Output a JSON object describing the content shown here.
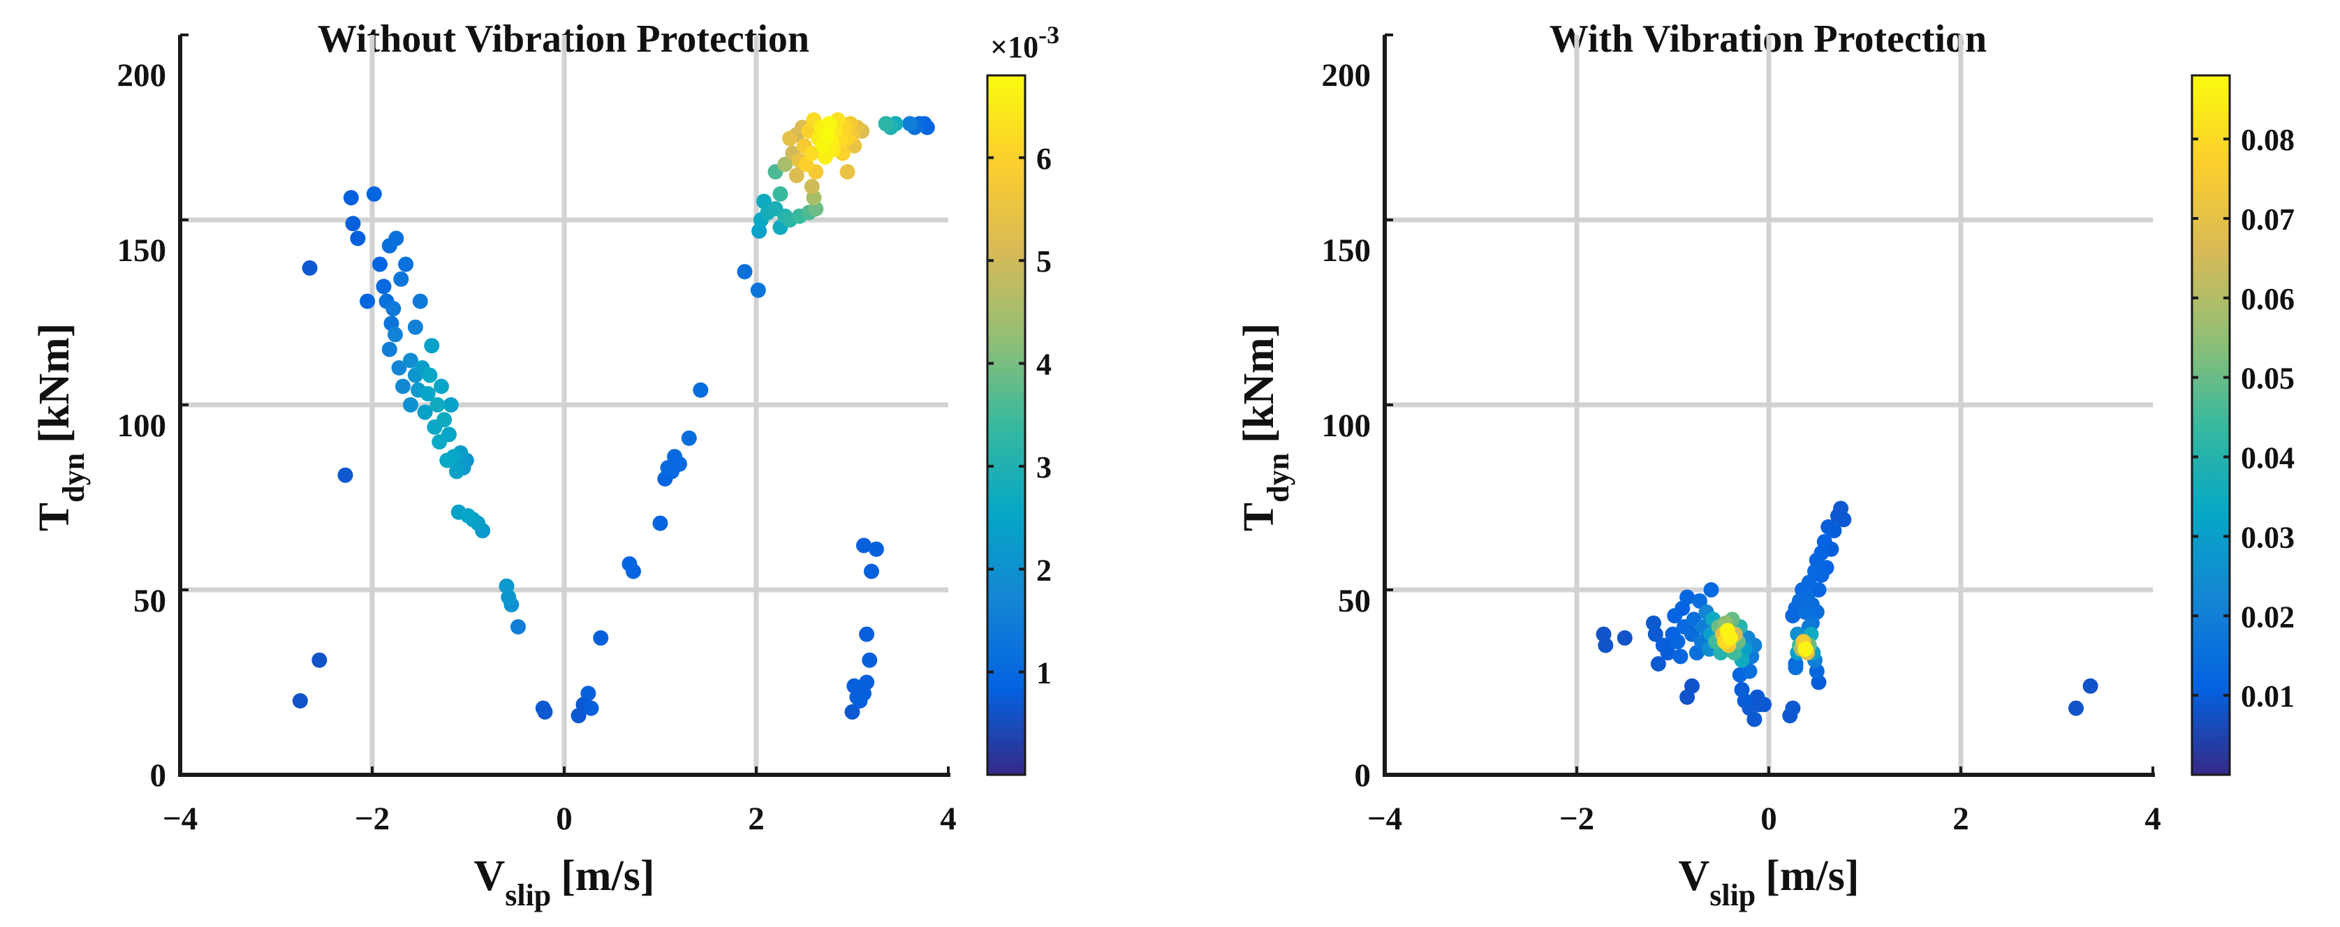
{
  "colors": {
    "parula": [
      "#352a87",
      "#0363e1",
      "#1485d4",
      "#06a7c6",
      "#38b99e",
      "#92bf73",
      "#d9ba56",
      "#fcce2e",
      "#f9fb0e"
    ],
    "grid": "#d2d2d2",
    "axis": "#1a1a1a"
  },
  "chart_data": [
    {
      "type": "scatter",
      "title": "Without Vibration Protection",
      "xlabel_main": "V",
      "xlabel_sub": "slip",
      "xlabel_unit": "[m/s]",
      "ylabel_main": "T",
      "ylabel_sub": "dyn",
      "ylabel_unit": "[kNm]",
      "xlim": [
        -4,
        4
      ],
      "ylim": [
        0,
        200
      ],
      "xticks": [
        -4,
        -2,
        0,
        2,
        4
      ],
      "yticks": [
        0,
        50,
        100,
        150,
        200
      ],
      "xtick_labels": [
        "−4",
        "−2",
        "0",
        "2",
        "4"
      ],
      "ytick_labels": [
        "0",
        "50",
        "100",
        "150",
        "200"
      ],
      "grid": true,
      "colorbar": {
        "clim": [
          0,
          0.0068
        ],
        "ticks": [
          0.001,
          0.002,
          0.003,
          0.004,
          0.005,
          0.006
        ],
        "tick_labels": [
          "1",
          "2",
          "3",
          "4",
          "5",
          "6"
        ],
        "exponent_base": "×10",
        "exponent_power": "-3"
      },
      "points": [
        [
          -2.75,
          20,
          0.0006
        ],
        [
          -2.55,
          31,
          0.0006
        ],
        [
          -2.65,
          137,
          0.0007
        ],
        [
          -2.28,
          81,
          0.0007
        ],
        [
          -2.2,
          149,
          0.0008
        ],
        [
          -2.22,
          156,
          0.0008
        ],
        [
          -2.15,
          145,
          0.0008
        ],
        [
          -2.05,
          128,
          0.0009
        ],
        [
          -1.98,
          157,
          0.0009
        ],
        [
          -1.92,
          138,
          0.0009
        ],
        [
          -1.88,
          132,
          0.001
        ],
        [
          -1.82,
          143,
          0.0011
        ],
        [
          -1.75,
          145,
          0.0012
        ],
        [
          -1.85,
          128,
          0.0012
        ],
        [
          -1.8,
          122,
          0.0013
        ],
        [
          -1.78,
          126,
          0.0014
        ],
        [
          -1.82,
          115,
          0.0015
        ],
        [
          -1.76,
          119,
          0.0016
        ],
        [
          -1.7,
          134,
          0.0013
        ],
        [
          -1.65,
          138,
          0.0012
        ],
        [
          -1.72,
          110,
          0.0017
        ],
        [
          -1.68,
          105,
          0.0018
        ],
        [
          -1.6,
          112,
          0.0019
        ],
        [
          -1.55,
          121,
          0.0016
        ],
        [
          -1.5,
          128,
          0.0014
        ],
        [
          -1.6,
          100,
          0.002
        ],
        [
          -1.55,
          108,
          0.0021
        ],
        [
          -1.52,
          104,
          0.0022
        ],
        [
          -1.48,
          110,
          0.0023
        ],
        [
          -1.45,
          98,
          0.0024
        ],
        [
          -1.42,
          103,
          0.0025
        ],
        [
          -1.4,
          108,
          0.0026
        ],
        [
          -1.38,
          116,
          0.0024
        ],
        [
          -1.35,
          94,
          0.0026
        ],
        [
          -1.32,
          100,
          0.0027
        ],
        [
          -1.3,
          90,
          0.0026
        ],
        [
          -1.28,
          105,
          0.0025
        ],
        [
          -1.25,
          96,
          0.0027
        ],
        [
          -1.22,
          85,
          0.0026
        ],
        [
          -1.2,
          92,
          0.0025
        ],
        [
          -1.18,
          100,
          0.0024
        ],
        [
          -1.15,
          86,
          0.0025
        ],
        [
          -1.12,
          82,
          0.0024
        ],
        [
          -1.08,
          87,
          0.0023
        ],
        [
          -1.05,
          83,
          0.0022
        ],
        [
          -1.02,
          85,
          0.0021
        ],
        [
          -1.1,
          71,
          0.0024
        ],
        [
          -1.0,
          70,
          0.0025
        ],
        [
          -0.95,
          69,
          0.0024
        ],
        [
          -0.9,
          68,
          0.0023
        ],
        [
          -0.85,
          66,
          0.0022
        ],
        [
          -0.6,
          51,
          0.0022
        ],
        [
          -0.58,
          48,
          0.0021
        ],
        [
          -0.55,
          46,
          0.002
        ],
        [
          -0.48,
          40,
          0.0015
        ],
        [
          -0.22,
          18,
          0.0007
        ],
        [
          -0.2,
          17,
          0.0007
        ],
        [
          0.15,
          16,
          0.0007
        ],
        [
          0.2,
          19,
          0.0007
        ],
        [
          0.25,
          22,
          0.0008
        ],
        [
          0.28,
          18,
          0.0008
        ],
        [
          0.38,
          37,
          0.0008
        ],
        [
          0.68,
          57,
          0.0009
        ],
        [
          0.72,
          55,
          0.0009
        ],
        [
          1.0,
          68,
          0.0009
        ],
        [
          1.05,
          80,
          0.0009
        ],
        [
          1.08,
          83,
          0.001
        ],
        [
          1.12,
          82,
          0.001
        ],
        [
          1.15,
          86,
          0.001
        ],
        [
          1.2,
          84,
          0.001
        ],
        [
          1.3,
          91,
          0.0011
        ],
        [
          1.42,
          104,
          0.0011
        ],
        [
          1.88,
          136,
          0.0012
        ],
        [
          2.02,
          131,
          0.0013
        ],
        [
          2.03,
          147,
          0.0024
        ],
        [
          2.05,
          150,
          0.0026
        ],
        [
          2.08,
          155,
          0.0027
        ],
        [
          2.12,
          152,
          0.0028
        ],
        [
          2.2,
          153,
          0.0029
        ],
        [
          2.25,
          148,
          0.0027
        ],
        [
          2.3,
          151,
          0.0031
        ],
        [
          2.35,
          150,
          0.0032
        ],
        [
          2.45,
          151,
          0.0034
        ],
        [
          2.55,
          152,
          0.0036
        ],
        [
          2.62,
          153,
          0.0039
        ],
        [
          2.6,
          156,
          0.0045
        ],
        [
          2.58,
          159,
          0.005
        ],
        [
          2.2,
          163,
          0.0036
        ],
        [
          2.25,
          157,
          0.0034
        ],
        [
          2.3,
          165,
          0.0045
        ],
        [
          2.38,
          168,
          0.005
        ],
        [
          2.42,
          162,
          0.0052
        ],
        [
          2.45,
          166,
          0.0055
        ],
        [
          2.35,
          172,
          0.0054
        ],
        [
          2.5,
          170,
          0.0058
        ],
        [
          2.52,
          165,
          0.006
        ],
        [
          2.55,
          174,
          0.006
        ],
        [
          2.58,
          168,
          0.0062
        ],
        [
          2.6,
          177,
          0.0062
        ],
        [
          2.62,
          163,
          0.0058
        ],
        [
          2.65,
          172,
          0.0065
        ],
        [
          2.68,
          175,
          0.0066
        ],
        [
          2.7,
          170,
          0.0067
        ],
        [
          2.72,
          167,
          0.0066
        ],
        [
          2.74,
          173,
          0.0068
        ],
        [
          2.76,
          176,
          0.0067
        ],
        [
          2.78,
          171,
          0.0066
        ],
        [
          2.8,
          169,
          0.0065
        ],
        [
          2.82,
          174,
          0.0064
        ],
        [
          2.85,
          177,
          0.0063
        ],
        [
          2.88,
          172,
          0.0062
        ],
        [
          2.9,
          168,
          0.006
        ],
        [
          2.92,
          175,
          0.0061
        ],
        [
          2.95,
          172,
          0.006
        ],
        [
          2.98,
          176,
          0.0058
        ],
        [
          3.0,
          173,
          0.0057
        ],
        [
          3.02,
          170,
          0.0055
        ],
        [
          3.05,
          175,
          0.0054
        ],
        [
          3.1,
          174,
          0.0052
        ],
        [
          2.95,
          163,
          0.0055
        ],
        [
          2.48,
          175,
          0.0052
        ],
        [
          2.42,
          173,
          0.005
        ],
        [
          3.35,
          176,
          0.0032
        ],
        [
          3.4,
          175,
          0.003
        ],
        [
          3.45,
          176,
          0.0028
        ],
        [
          3.6,
          176,
          0.0015
        ],
        [
          3.65,
          175,
          0.0012
        ],
        [
          3.7,
          176,
          0.001
        ],
        [
          3.75,
          176,
          0.0009
        ],
        [
          3.78,
          175,
          0.0009
        ],
        [
          3.12,
          62,
          0.0008
        ],
        [
          3.25,
          61,
          0.0008
        ],
        [
          3.2,
          55,
          0.0008
        ],
        [
          3.15,
          38,
          0.0008
        ],
        [
          3.18,
          31,
          0.0008
        ],
        [
          3.15,
          25,
          0.0008
        ],
        [
          3.1,
          23,
          0.0008
        ],
        [
          3.05,
          21,
          0.0008
        ],
        [
          3.02,
          24,
          0.0008
        ],
        [
          3.0,
          17,
          0.0007
        ],
        [
          3.08,
          20,
          0.0008
        ],
        [
          3.12,
          22,
          0.0008
        ]
      ]
    },
    {
      "type": "scatter",
      "title": "With Vibration Protection",
      "xlabel_main": "V",
      "xlabel_sub": "slip",
      "xlabel_unit": "[m/s]",
      "ylabel_main": "T",
      "ylabel_sub": "dyn",
      "ylabel_unit": "[kNm]",
      "xlim": [
        -4,
        4
      ],
      "ylim": [
        0,
        200
      ],
      "xticks": [
        -4,
        -2,
        0,
        2,
        4
      ],
      "yticks": [
        0,
        50,
        100,
        150,
        200
      ],
      "xtick_labels": [
        "−4",
        "−2",
        "0",
        "2",
        "4"
      ],
      "ytick_labels": [
        "0",
        "50",
        "100",
        "150",
        "200"
      ],
      "grid": true,
      "colorbar": {
        "clim": [
          0,
          0.088
        ],
        "ticks": [
          0.01,
          0.02,
          0.03,
          0.04,
          0.05,
          0.06,
          0.07,
          0.08
        ],
        "tick_labels": [
          "0.01",
          "0.02",
          "0.03",
          "0.04",
          "0.05",
          "0.06",
          "0.07",
          "0.08"
        ]
      },
      "points": [
        [
          -1.72,
          38,
          0.008
        ],
        [
          -1.7,
          35,
          0.008
        ],
        [
          -1.5,
          37,
          0.008
        ],
        [
          -1.2,
          41,
          0.009
        ],
        [
          -1.18,
          38,
          0.009
        ],
        [
          -1.15,
          30,
          0.009
        ],
        [
          -1.1,
          35,
          0.01
        ],
        [
          -1.05,
          33,
          0.01
        ],
        [
          -1.0,
          38,
          0.011
        ],
        [
          -0.98,
          43,
          0.011
        ],
        [
          -0.95,
          36,
          0.012
        ],
        [
          -0.92,
          32,
          0.012
        ],
        [
          -0.9,
          45,
          0.011
        ],
        [
          -0.88,
          40,
          0.013
        ],
        [
          -0.85,
          21,
          0.008
        ],
        [
          -0.8,
          24,
          0.008
        ],
        [
          -0.85,
          48,
          0.012
        ],
        [
          -0.8,
          38,
          0.014
        ],
        [
          -0.78,
          42,
          0.015
        ],
        [
          -0.75,
          33,
          0.015
        ],
        [
          -0.72,
          47,
          0.014
        ],
        [
          -0.7,
          36,
          0.018
        ],
        [
          -0.68,
          40,
          0.02
        ],
        [
          -0.65,
          44,
          0.022
        ],
        [
          -0.62,
          34,
          0.025
        ],
        [
          -0.6,
          50,
          0.013
        ],
        [
          -0.6,
          38,
          0.03
        ],
        [
          -0.58,
          42,
          0.035
        ],
        [
          -0.55,
          36,
          0.045
        ],
        [
          -0.52,
          40,
          0.05
        ],
        [
          -0.5,
          33,
          0.04
        ],
        [
          -0.48,
          38,
          0.07
        ],
        [
          -0.46,
          36,
          0.08
        ],
        [
          -0.45,
          41,
          0.055
        ],
        [
          -0.43,
          39,
          0.086
        ],
        [
          -0.42,
          35,
          0.075
        ],
        [
          -0.4,
          37,
          0.085
        ],
        [
          -0.38,
          42,
          0.05
        ],
        [
          -0.36,
          33,
          0.045
        ],
        [
          -0.35,
          38,
          0.065
        ],
        [
          -0.32,
          36,
          0.05
        ],
        [
          -0.3,
          40,
          0.04
        ],
        [
          -0.28,
          31,
          0.035
        ],
        [
          -0.25,
          34,
          0.03
        ],
        [
          -0.22,
          37,
          0.022
        ],
        [
          -0.2,
          28,
          0.015
        ],
        [
          -0.18,
          32,
          0.018
        ],
        [
          -0.15,
          35,
          0.02
        ],
        [
          -0.3,
          27,
          0.012
        ],
        [
          -0.28,
          23,
          0.01
        ],
        [
          -0.25,
          20,
          0.01
        ],
        [
          -0.2,
          18,
          0.009
        ],
        [
          -0.15,
          15,
          0.009
        ],
        [
          -0.1,
          19,
          0.009
        ],
        [
          -0.05,
          19,
          0.009
        ],
        [
          -0.12,
          21,
          0.009
        ],
        [
          0.22,
          16,
          0.009
        ],
        [
          0.25,
          18,
          0.009
        ],
        [
          0.28,
          30,
          0.012
        ],
        [
          0.3,
          33,
          0.03
        ],
        [
          0.32,
          35,
          0.045
        ],
        [
          0.34,
          34,
          0.06
        ],
        [
          0.36,
          36,
          0.075
        ],
        [
          0.38,
          34,
          0.086
        ],
        [
          0.4,
          33,
          0.07
        ],
        [
          0.42,
          35,
          0.05
        ],
        [
          0.44,
          38,
          0.035
        ],
        [
          0.46,
          33,
          0.03
        ],
        [
          0.48,
          31,
          0.02
        ],
        [
          0.3,
          38,
          0.025
        ],
        [
          0.28,
          29,
          0.015
        ],
        [
          0.5,
          28,
          0.012
        ],
        [
          0.52,
          25,
          0.01
        ],
        [
          0.25,
          43,
          0.012
        ],
        [
          0.28,
          45,
          0.013
        ],
        [
          0.32,
          47,
          0.014
        ],
        [
          0.35,
          50,
          0.013
        ],
        [
          0.38,
          44,
          0.015
        ],
        [
          0.4,
          48,
          0.014
        ],
        [
          0.42,
          52,
          0.013
        ],
        [
          0.45,
          46,
          0.014
        ],
        [
          0.48,
          55,
          0.013
        ],
        [
          0.5,
          58,
          0.012
        ],
        [
          0.52,
          50,
          0.012
        ],
        [
          0.55,
          60,
          0.011
        ],
        [
          0.58,
          63,
          0.011
        ],
        [
          0.55,
          54,
          0.012
        ],
        [
          0.6,
          56,
          0.011
        ],
        [
          0.62,
          67,
          0.01
        ],
        [
          0.65,
          61,
          0.01
        ],
        [
          0.68,
          66,
          0.01
        ],
        [
          0.72,
          70,
          0.009
        ],
        [
          0.75,
          72,
          0.009
        ],
        [
          0.78,
          69,
          0.009
        ],
        [
          0.45,
          41,
          0.016
        ],
        [
          0.5,
          44,
          0.015
        ],
        [
          0.42,
          40,
          0.018
        ],
        [
          3.2,
          18,
          0.008
        ],
        [
          3.35,
          24,
          0.008
        ]
      ]
    }
  ]
}
